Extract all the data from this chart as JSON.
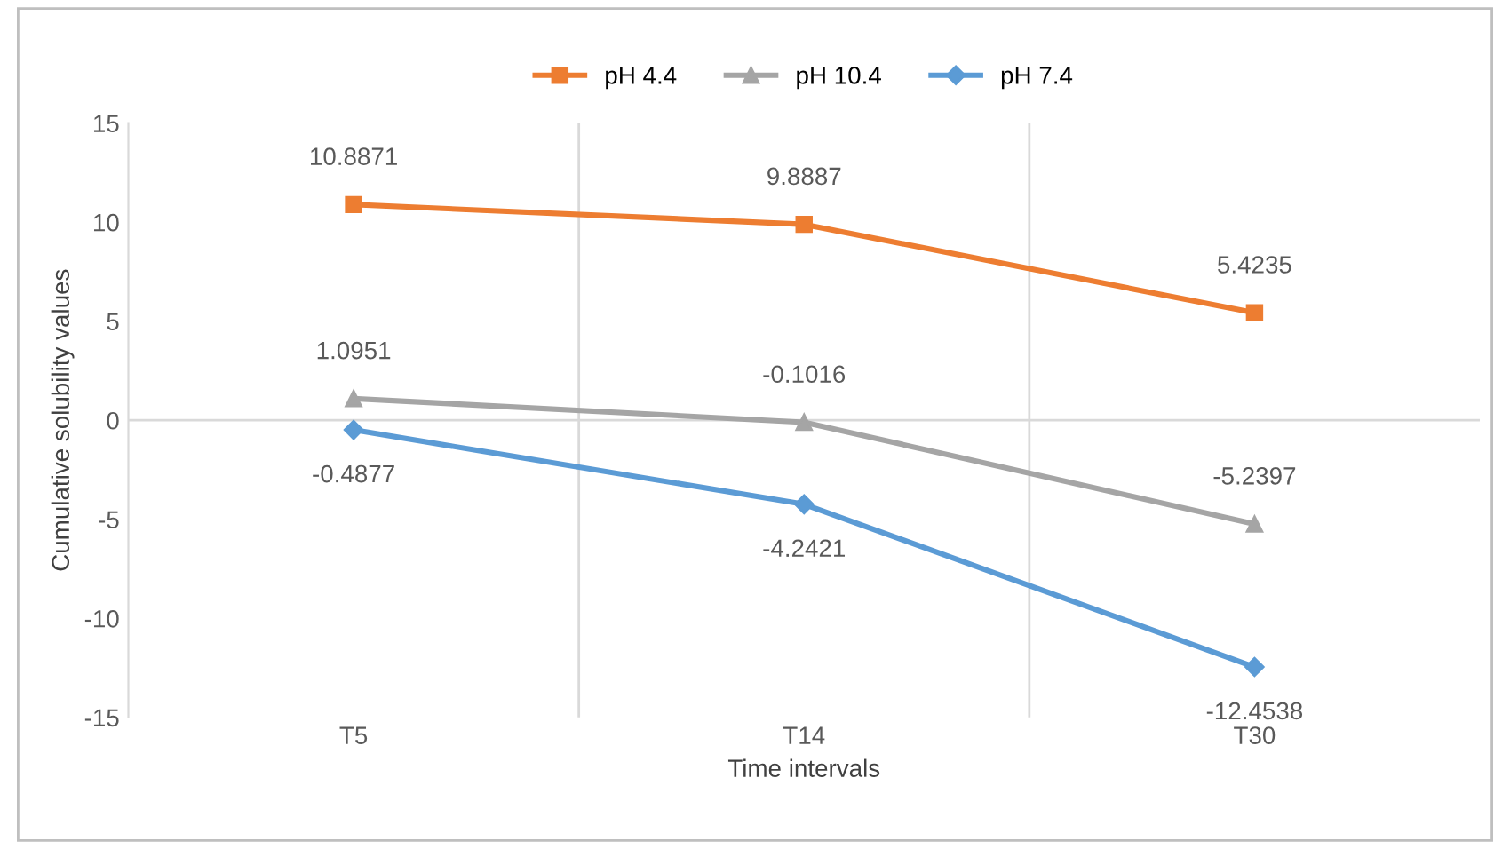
{
  "chart_data": {
    "type": "line",
    "xlabel": "Time intervals",
    "ylabel": "Cumulative solubility values",
    "categories": [
      "T5",
      "T14",
      "T30"
    ],
    "series": [
      {
        "name": "pH 4.4",
        "color": "#ed7d31",
        "marker": "square",
        "values": [
          10.8871,
          9.8887,
          5.4235
        ]
      },
      {
        "name": "pH 10.4",
        "color": "#a5a5a5",
        "marker": "triangle",
        "values": [
          1.0951,
          -0.1016,
          -5.2397
        ]
      },
      {
        "name": "pH 7.4",
        "color": "#5b9bd5",
        "marker": "diamond",
        "values": [
          -0.4877,
          -4.2421,
          -12.4538
        ]
      }
    ],
    "ylim": [
      -15,
      15
    ],
    "yticks": [
      -15,
      -10,
      -5,
      0,
      5,
      10,
      15
    ],
    "grid": "x",
    "legend": "top",
    "data_labels": true,
    "line_style": "solid",
    "ref_lines": [
      {
        "axis": "y",
        "value": 0,
        "color": "#d9d9d9"
      }
    ]
  }
}
